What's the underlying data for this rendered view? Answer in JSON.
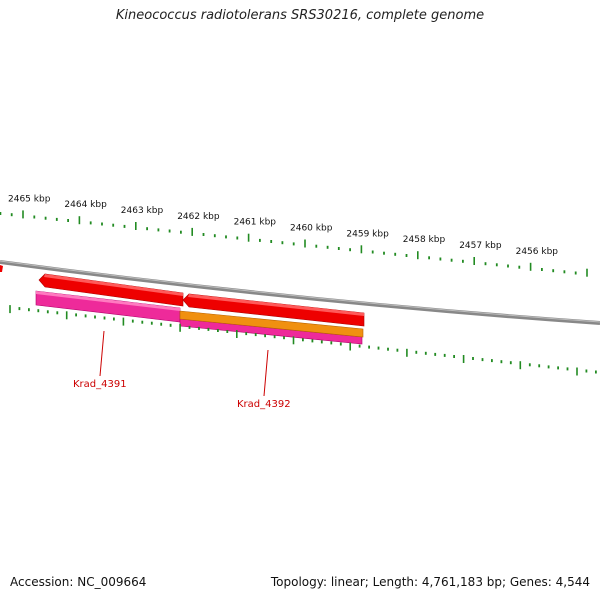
{
  "header": {
    "title": "Kineococcus radiotolerans SRS30216, complete genome"
  },
  "footer": {
    "accession": "Accession: NC_009664",
    "summary": "Topology: linear; Length: 4,761,183 bp; Genes: 4,544"
  },
  "scale": {
    "unit": "kbp",
    "ticks": [
      {
        "kbp": 2465,
        "label": "2465 kbp"
      },
      {
        "kbp": 2464,
        "label": "2464 kbp"
      },
      {
        "kbp": 2463,
        "label": "2463 kbp"
      },
      {
        "kbp": 2462,
        "label": "2462 kbp"
      },
      {
        "kbp": 2461,
        "label": "2461 kbp"
      },
      {
        "kbp": 2460,
        "label": "2460 kbp"
      },
      {
        "kbp": 2459,
        "label": "2459 kbp"
      },
      {
        "kbp": 2458,
        "label": "2458 kbp"
      },
      {
        "kbp": 2457,
        "label": "2457 kbp"
      },
      {
        "kbp": 2456,
        "label": "2456 kbp"
      }
    ]
  },
  "genes": [
    {
      "id": "Krad_4391",
      "label": "Krad_4391",
      "color": "#cc0000"
    },
    {
      "id": "Krad_4392",
      "label": "Krad_4392",
      "color": "#cc0000"
    }
  ],
  "colors": {
    "backbone": "#808080",
    "tick": "#228b22",
    "feature_red": "#ee0000",
    "feature_pink": "#ee2a9a",
    "feature_orange": "#f09010",
    "label_red": "#cc0000"
  }
}
